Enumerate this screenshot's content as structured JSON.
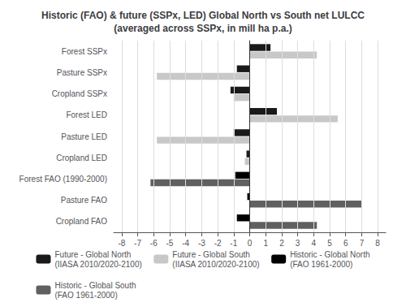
{
  "chart_data": {
    "type": "bar",
    "orientation": "horizontal",
    "title": "Historic (FAO) & future (SSPx, LED) Global North vs South net LULCC\n(averaged across SSPx, in mill ha p.a.)",
    "categories": [
      "Forest SSPx",
      "Pasture SSPx",
      "Cropland SSPx",
      "Forest LED",
      "Pasture LED",
      "Cropland LED",
      "Forest FAO (1990-2000)",
      "Pasture FAO",
      "Cropland FAO"
    ],
    "series": [
      {
        "name": "Future - Global North\n(IIASA 2010/2020-2100)",
        "color": "#1a1a1a",
        "values": [
          1.3,
          -0.8,
          -1.2,
          1.7,
          -1.0,
          -0.2,
          null,
          null,
          null
        ]
      },
      {
        "name": "Future - Global South\n(IIASA 2010/2020-2100)",
        "color": "#c8c8c8",
        "values": [
          4.2,
          -5.8,
          -1.0,
          5.5,
          -5.8,
          -0.3,
          null,
          null,
          null
        ]
      },
      {
        "name": "Historic - Global North\n(FAO 1961-2000)",
        "color": "#000000",
        "values": [
          null,
          null,
          null,
          null,
          null,
          null,
          -0.9,
          -0.15,
          -0.8
        ]
      },
      {
        "name": "Historic - Global South\n(FAO 1961-2000)",
        "color": "#606060",
        "values": [
          null,
          null,
          null,
          null,
          null,
          null,
          -6.2,
          7.0,
          4.2
        ]
      }
    ],
    "xlim": [
      -8.5,
      8.5
    ],
    "xticks": [
      -8,
      -7,
      -6,
      -5,
      -4,
      -3,
      -2,
      -1,
      0,
      1,
      2,
      3,
      4,
      5,
      6,
      7,
      8
    ],
    "grid": true,
    "legend": "bottom"
  }
}
